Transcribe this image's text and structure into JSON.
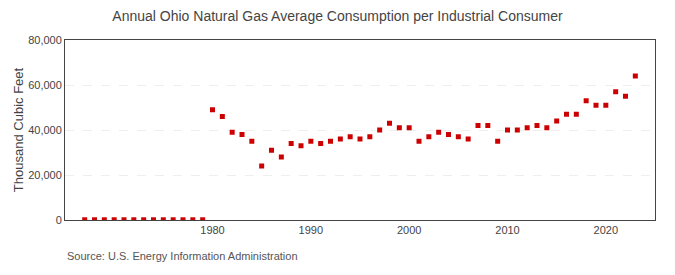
{
  "chart_data": {
    "type": "scatter",
    "title": "Annual Ohio Natural Gas Average Consumption per Industrial Consumer",
    "ylabel": "Thousand Cubic Feet",
    "annotations": [
      "Source: U.S. Energy Information Administration"
    ],
    "color": "#cc0000",
    "marker": "square",
    "x": [
      1967,
      1968,
      1969,
      1970,
      1971,
      1972,
      1973,
      1974,
      1975,
      1976,
      1977,
      1978,
      1979,
      1980,
      1981,
      1982,
      1983,
      1984,
      1985,
      1986,
      1987,
      1988,
      1989,
      1990,
      1991,
      1992,
      1993,
      1994,
      1995,
      1996,
      1997,
      1998,
      1999,
      2000,
      2001,
      2002,
      2003,
      2004,
      2005,
      2006,
      2007,
      2008,
      2009,
      2010,
      2011,
      2012,
      2013,
      2014,
      2015,
      2016,
      2017,
      2018,
      2019,
      2020,
      2021,
      2022,
      2023
    ],
    "values": [
      100,
      100,
      100,
      100,
      100,
      100,
      100,
      100,
      100,
      100,
      100,
      100,
      100,
      49000,
      46000,
      39000,
      38000,
      35000,
      24000,
      31000,
      28000,
      34000,
      33000,
      35000,
      34000,
      35000,
      36000,
      37000,
      36000,
      37000,
      40000,
      43000,
      41000,
      41000,
      35000,
      37000,
      39000,
      38000,
      37000,
      36000,
      42000,
      42000,
      35000,
      40000,
      40000,
      41000,
      42000,
      41000,
      44000,
      47000,
      47000,
      53000,
      51000,
      51000,
      57000,
      55000,
      64000
    ],
    "xlim": [
      1965,
      2025
    ],
    "xticks": [
      1980,
      1990,
      2000,
      2010,
      2020
    ],
    "ylim": [
      0,
      80000
    ],
    "yticks": [
      0,
      {
        "value": 20000,
        "label": "20,000"
      },
      {
        "value": 40000,
        "label": "40,000"
      },
      {
        "value": 60000,
        "label": "60,000"
      },
      {
        "value": 80000,
        "label": "80,000"
      }
    ],
    "grid": true
  }
}
